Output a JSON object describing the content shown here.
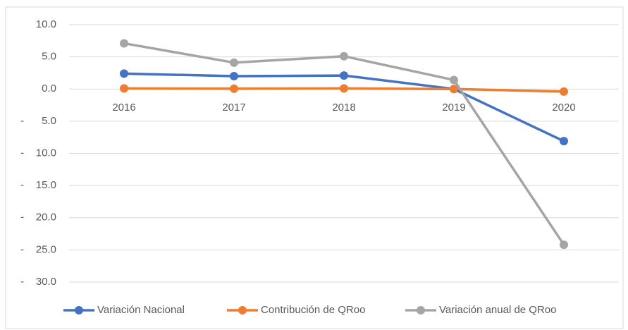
{
  "chart_data": {
    "type": "line",
    "categories": [
      "2016",
      "2017",
      "2018",
      "2019",
      "2020"
    ],
    "series": [
      {
        "name": "Variación Nacional",
        "color": "#4472c4",
        "values": [
          2.4,
          2.0,
          2.1,
          0.0,
          -8.1
        ]
      },
      {
        "name": "Contribución de QRoo",
        "color": "#ed7d31",
        "values": [
          0.1,
          0.05,
          0.1,
          0.0,
          -0.4
        ]
      },
      {
        "name": "Variación anual de QRoo",
        "color": "#a5a5a5",
        "values": [
          7.1,
          4.1,
          5.1,
          1.4,
          -24.2
        ]
      }
    ],
    "ylim": [
      -30,
      10
    ],
    "yticks": [
      {
        "value": 10,
        "label": "10.0"
      },
      {
        "value": 5,
        "label": "5.0"
      },
      {
        "value": 0,
        "label": "0.0"
      },
      {
        "value": -5,
        "label": "-      5.0"
      },
      {
        "value": -10,
        "label": "-    10.0"
      },
      {
        "value": -15,
        "label": "-    15.0"
      },
      {
        "value": -20,
        "label": "-    20.0"
      },
      {
        "value": -25,
        "label": "-    25.0"
      },
      {
        "value": -30,
        "label": "-    30.0"
      }
    ],
    "grid": true,
    "legend": "bottom"
  }
}
